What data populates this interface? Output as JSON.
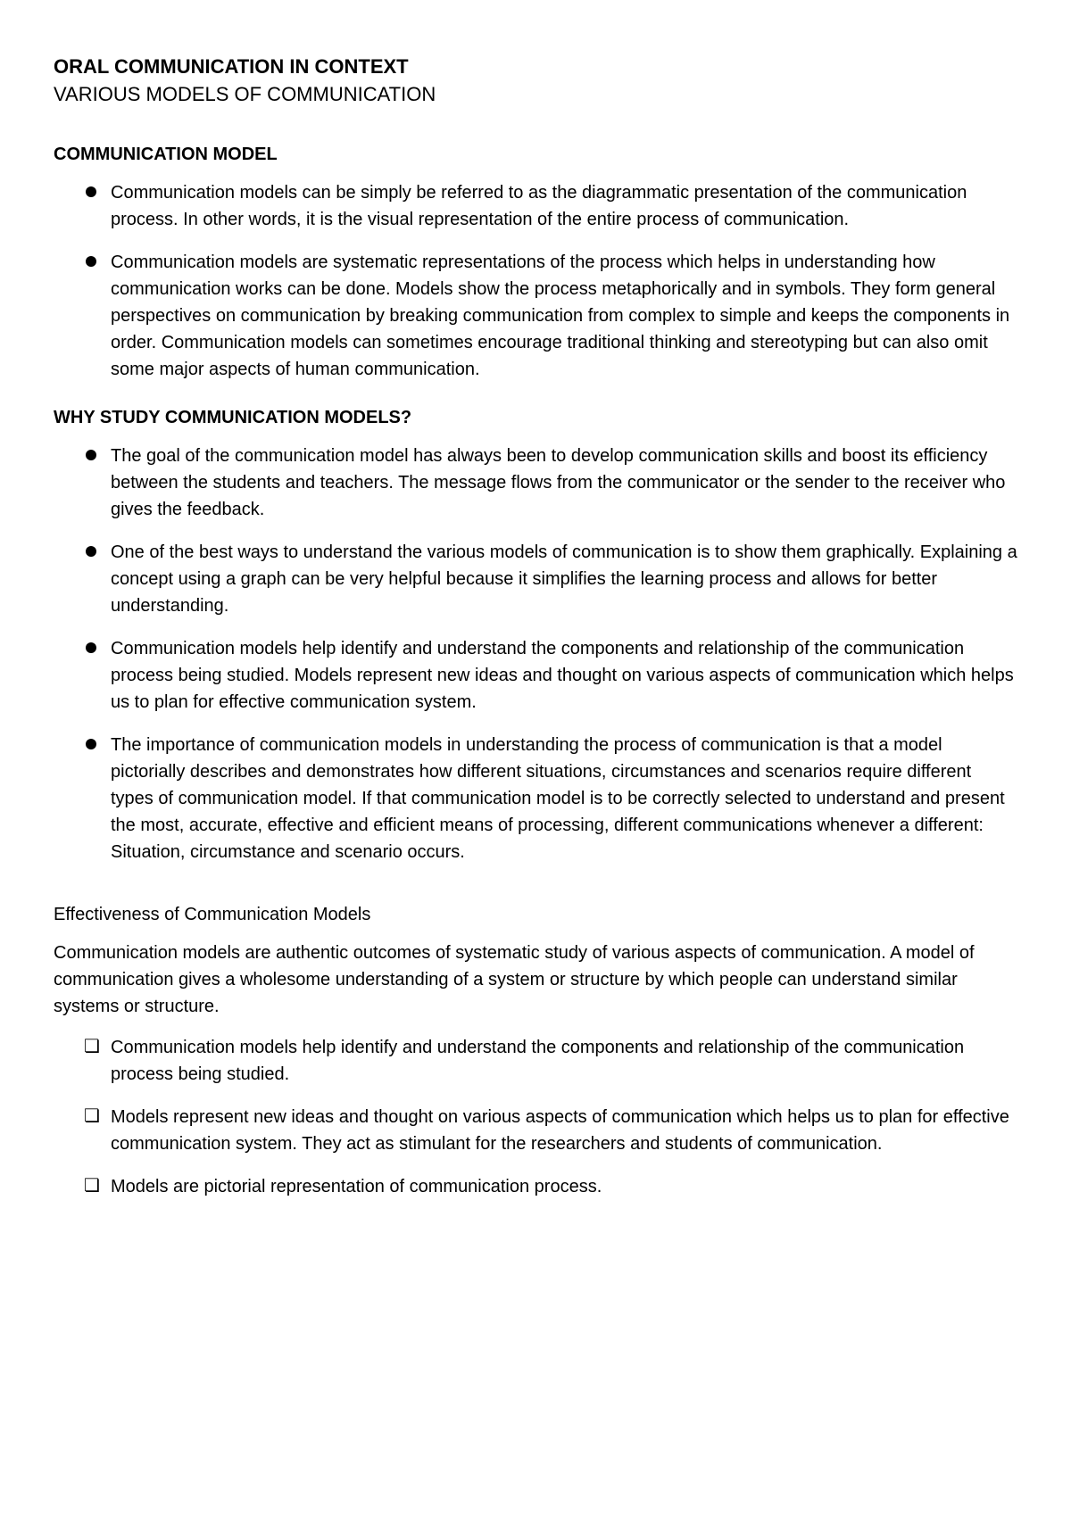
{
  "header": {
    "title": "ORAL COMMUNICATION IN CONTEXT",
    "subtitle": "VARIOUS MODELS OF COMMUNICATION"
  },
  "sections": [
    {
      "heading": "COMMUNICATION MODEL",
      "bullets": [
        "Communication models can be simply be referred to as the diagrammatic presentation of the communication process. In other words, it is the visual representation of the entire process of communication.",
        "Communication models are systematic representations of the process which helps in understanding how communication works can be done. Models show the process metaphorically and in symbols. They form general perspectives on communication by breaking communication from complex to simple and keeps the components in order. Communication models can sometimes encourage traditional thinking and stereotyping but can also omit some major aspects of human communication."
      ]
    },
    {
      "heading": "WHY STUDY COMMUNICATION MODELS?",
      "bullets": [
        "The goal of the communication model has always been to develop communication skills and boost its efficiency between the students and teachers. The message flows from the communicator or the sender to the receiver who gives the feedback.",
        "One of the best ways to understand the various models of communication is to show them graphically. Explaining a concept using a graph can be very helpful because it simplifies the learning process and allows for better understanding.",
        "Communication models help identify and understand the components and relationship of the communication process being studied. Models represent new ideas and thought on various aspects of communication which helps us to plan for effective communication system.",
        "The importance of communication models in understanding the process of communication is that a model pictorially describes and demonstrates how different situations, circumstances and scenarios require different types of communication model. If that communication model is to be correctly selected to understand and present the most, accurate, effective and efficient means of processing, different communications whenever a different: Situation, circumstance and scenario occurs."
      ]
    }
  ],
  "effectiveness": {
    "heading": "Effectiveness of Communication Models",
    "intro": "Communication models are authentic outcomes of systematic study of various aspects of communication. A model of communication gives a wholesome understanding of a system or structure by which people can understand similar systems or structure.",
    "items": [
      "Communication models help identify and understand the components and relationship of the communication process being studied.",
      "Models represent new ideas and thought on various aspects of communication which helps us to plan for effective communication system. They act as stimulant for the researchers and students of communication.",
      "Models are pictorial representation of communication process."
    ]
  }
}
